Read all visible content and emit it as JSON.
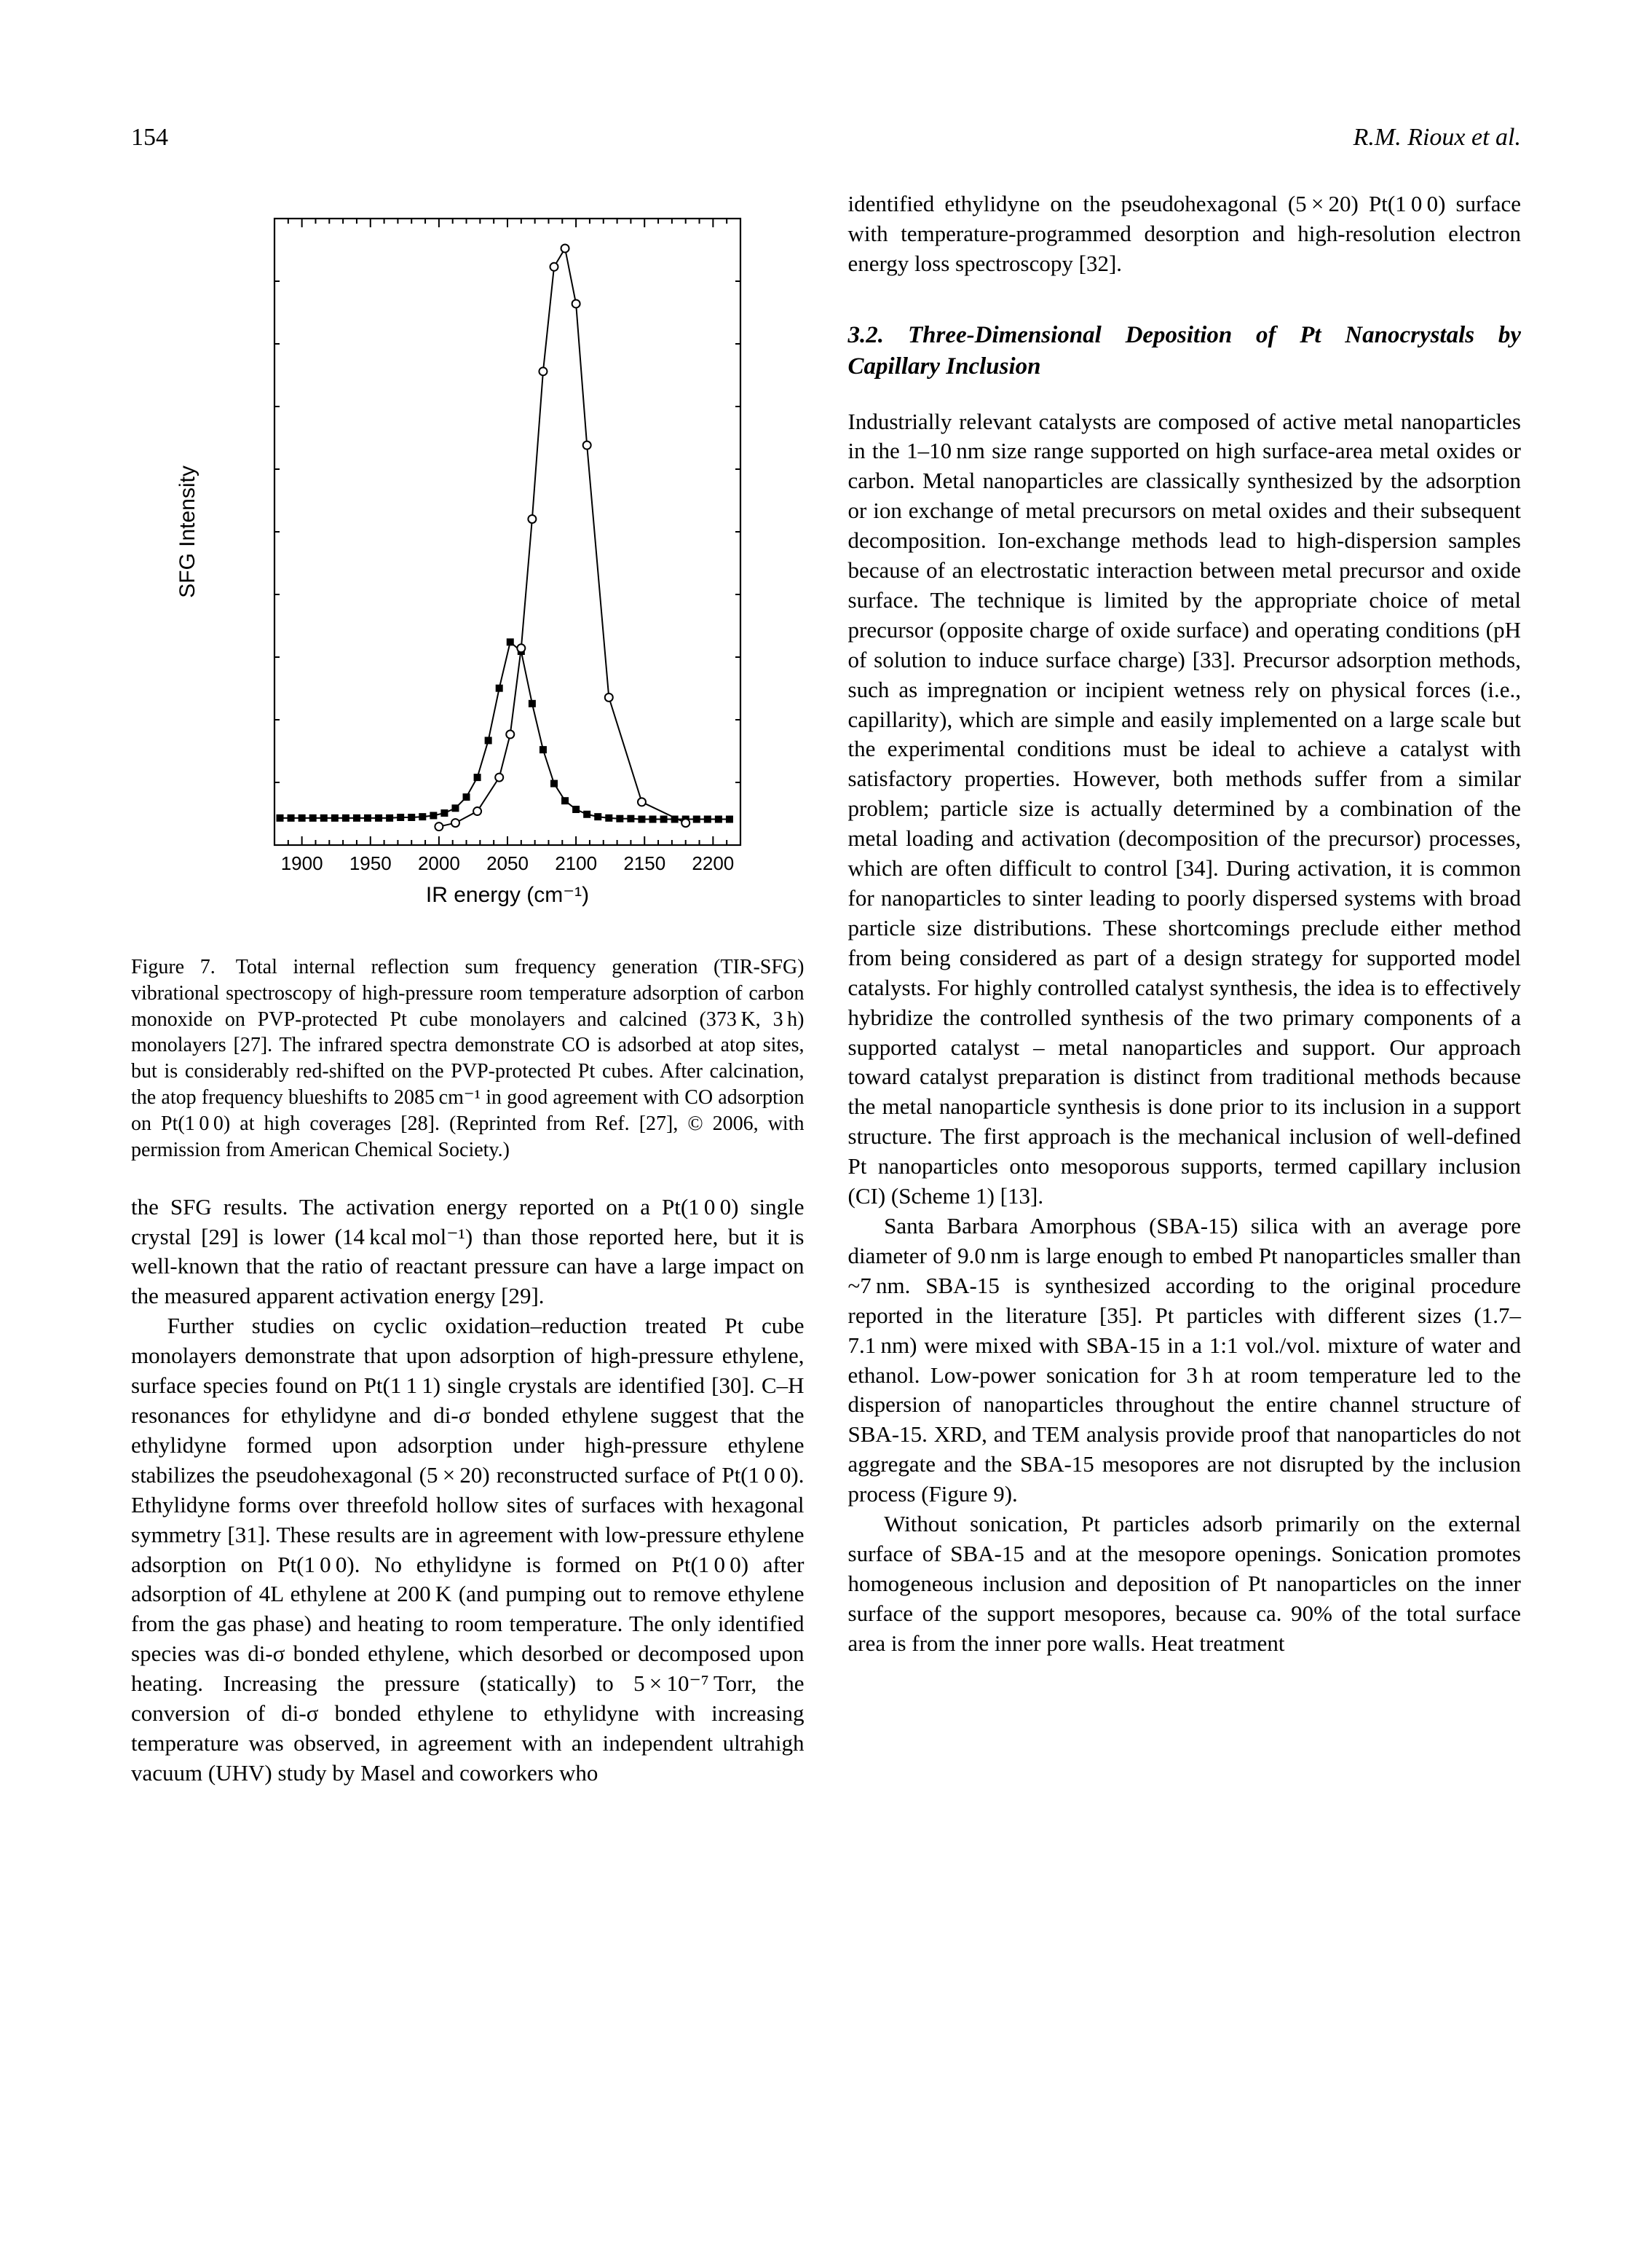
{
  "page_number": "154",
  "running_author": "R.M. Rioux et al.",
  "figure7": {
    "type": "line-scatter",
    "xlabel": "IR energy (cm⁻¹)",
    "ylabel": "SFG Intensity",
    "xlim": [
      1880,
      2220
    ],
    "xticks": [
      1900,
      1950,
      2000,
      2050,
      2100,
      2150,
      2200
    ],
    "background_color": "#ffffff",
    "axis_color": "#000000",
    "tick_fontsize": 26,
    "label_fontsize": 30,
    "series": [
      {
        "name": "PVP-protected",
        "marker": "square-filled",
        "color": "#000000",
        "line_color": "#000000",
        "line_width": 2,
        "marker_size": 10,
        "x": [
          1884,
          1892,
          1900,
          1908,
          1916,
          1924,
          1932,
          1940,
          1948,
          1956,
          1964,
          1972,
          1980,
          1988,
          1996,
          2004,
          2012,
          2020,
          2028,
          2036,
          2044,
          2052,
          2060,
          2068,
          2076,
          2084,
          2092,
          2100,
          2108,
          2116,
          2124,
          2132,
          2140,
          2148,
          2156,
          2164,
          2172,
          2180,
          2188,
          2196,
          2204,
          2212
        ],
        "y": [
          0.44,
          0.44,
          0.44,
          0.44,
          0.44,
          0.44,
          0.44,
          0.44,
          0.44,
          0.44,
          0.44,
          0.45,
          0.45,
          0.46,
          0.48,
          0.52,
          0.6,
          0.78,
          1.1,
          1.7,
          2.55,
          3.3,
          3.15,
          2.3,
          1.55,
          1.0,
          0.72,
          0.58,
          0.5,
          0.46,
          0.44,
          0.43,
          0.43,
          0.42,
          0.42,
          0.42,
          0.42,
          0.42,
          0.42,
          0.42,
          0.42,
          0.42
        ]
      },
      {
        "name": "Calcined",
        "marker": "circle-open",
        "color": "#000000",
        "line_color": "#000000",
        "line_width": 2,
        "marker_size": 11,
        "x": [
          2000,
          2012,
          2028,
          2044,
          2052,
          2060,
          2068,
          2076,
          2084,
          2092,
          2100,
          2108,
          2124,
          2148,
          2180
        ],
        "y": [
          0.3,
          0.36,
          0.55,
          1.1,
          1.8,
          3.2,
          5.3,
          7.7,
          9.4,
          9.7,
          8.8,
          6.5,
          2.4,
          0.7,
          0.36
        ]
      }
    ]
  },
  "caption7": "Figure 7. Total internal reflection sum frequency generation (TIR-SFG) vibrational spectroscopy of high-pressure room temperature adsorption of carbon monoxide on PVP-protected Pt cube monolayers and calcined (373 K, 3 h) monolayers [27]. The infrared spectra demonstrate CO is adsorbed at atop sites, but is considerably red-shifted on the PVP-protected Pt cubes. After calcination, the atop frequency blueshifts to 2085 cm⁻¹ in good agreement with CO adsorption on Pt(1 0 0) at high coverages [28]. (Reprinted from Ref. [27], © 2006, with permission from American Chemical Society.)",
  "left_p1": "the SFG results. The activation energy reported on a Pt(1 0 0) single crystal [29] is lower (14 kcal mol⁻¹) than those reported here, but it is well-known that the ratio of reactant pressure can have a large impact on the measured apparent activation energy [29].",
  "left_p2": "Further studies on cyclic oxidation–reduction treated Pt cube monolayers demonstrate that upon adsorption of high-pressure ethylene, surface species found on Pt(1 1 1) single crystals are identified [30]. C–H resonances for ethylidyne and di-σ bonded ethylene suggest that the ethylidyne formed upon adsorption under high-pressure ethylene stabilizes the pseudohexagonal (5 × 20) reconstructed surface of Pt(1 0 0). Ethylidyne forms over threefold hollow sites of surfaces with hexagonal symmetry [31]. These results are in agreement with low-pressure ethylene adsorption on Pt(1 0 0). No ethylidyne is formed on Pt(1 0 0) after adsorption of 4L ethylene at 200 K (and pumping out to remove ethylene from the gas phase) and heating to room temperature. The only identified species was di-σ bonded ethylene, which desorbed or decomposed upon heating. Increasing the pressure (statically) to 5 × 10⁻⁷ Torr, the conversion of di-σ bonded ethylene to ethylidyne with increasing temperature was observed, in agreement with an independent ultrahigh vacuum (UHV) study by Masel and coworkers who",
  "right_p0": "identified ethylidyne on the pseudohexagonal (5 × 20) Pt(1 0 0) surface with temperature-programmed desorption and high-resolution electron energy loss spectroscopy [32].",
  "section_heading": "3.2. Three-Dimensional Deposition of Pt Nanocrystals by Capillary Inclusion",
  "right_p1": "Industrially relevant catalysts are composed of active metal nanoparticles in the 1–10 nm size range supported on high surface-area metal oxides or carbon. Metal nanoparticles are classically synthesized by the adsorption or ion exchange of metal precursors on metal oxides and their subsequent decomposition. Ion-exchange methods lead to high-dispersion samples because of an electrostatic interaction between metal precursor and oxide surface. The technique is limited by the appropriate choice of metal precursor (opposite charge of oxide surface) and operating conditions (pH of solution to induce surface charge) [33]. Precursor adsorption methods, such as impregnation or incipient wetness rely on physical forces (i.e., capillarity), which are simple and easily implemented on a large scale but the experimental conditions must be ideal to achieve a catalyst with satisfactory properties. However, both methods suffer from a similar problem; particle size is actually determined by a combination of the metal loading and activation (decomposition of the precursor) processes, which are often difficult to control [34]. During activation, it is common for nanoparticles to sinter leading to poorly dispersed systems with broad particle size distributions. These shortcomings preclude either method from being considered as part of a design strategy for supported model catalysts. For highly controlled catalyst synthesis, the idea is to effectively hybridize the controlled synthesis of the two primary components of a supported catalyst – metal nanoparticles and support. Our approach toward catalyst preparation is distinct from traditional methods because the metal nanoparticle synthesis is done prior to its inclusion in a support structure. The first approach is the mechanical inclusion of well-defined Pt nanoparticles onto mesoporous supports, termed capillary inclusion (CI) (Scheme 1) [13].",
  "right_p2": "Santa Barbara Amorphous (SBA-15) silica with an average pore diameter of 9.0 nm is large enough to embed Pt nanoparticles smaller than ~7 nm. SBA-15 is synthesized according to the original procedure reported in the literature [35]. Pt particles with different sizes (1.7–7.1 nm) were mixed with SBA-15 in a 1:1 vol./vol. mixture of water and ethanol. Low-power sonication for 3 h at room temperature led to the dispersion of nanoparticles throughout the entire channel structure of SBA-15. XRD, and TEM analysis provide proof that nanoparticles do not aggregate and the SBA-15 mesopores are not disrupted by the inclusion process (Figure 9).",
  "right_p3": "Without sonication, Pt particles adsorb primarily on the external surface of SBA-15 and at the mesopore openings. Sonication promotes homogeneous inclusion and deposition of Pt nanoparticles on the inner surface of the support mesopores, because ca. 90% of the total surface area is from the inner pore walls. Heat treatment"
}
